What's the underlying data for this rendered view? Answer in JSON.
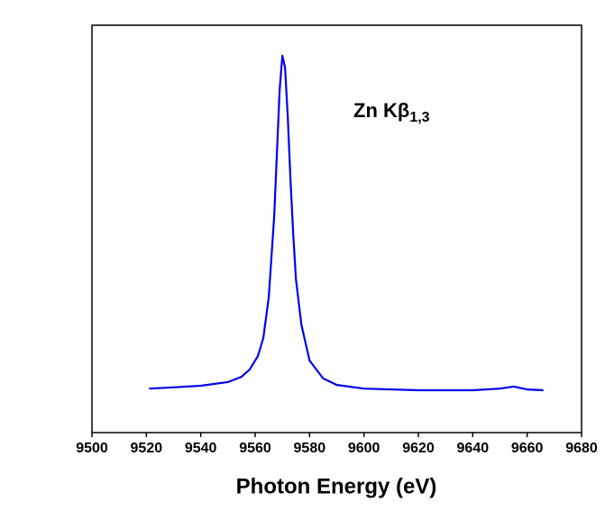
{
  "chart_data": {
    "type": "line",
    "x_label": "Photon Energy (eV)",
    "annotation": {
      "text": "Zn Kβ",
      "subscript": "1,3"
    },
    "xlim": [
      9500,
      9680
    ],
    "xticks": [
      9500,
      9520,
      9540,
      9560,
      9580,
      9600,
      9620,
      9640,
      9660,
      9680
    ],
    "ylim": [
      0,
      1
    ],
    "series": [
      {
        "color": "#0000ee",
        "x": [
          9521,
          9530,
          9540,
          9550,
          9555,
          9558,
          9561,
          9563,
          9565,
          9567,
          9568,
          9569,
          9570,
          9571,
          9572,
          9573,
          9574,
          9575,
          9577,
          9580,
          9585,
          9590,
          9600,
          9620,
          9640,
          9650,
          9655,
          9660,
          9666
        ],
        "values": [
          0.108,
          0.111,
          0.115,
          0.124,
          0.137,
          0.155,
          0.188,
          0.232,
          0.332,
          0.531,
          0.686,
          0.841,
          0.925,
          0.896,
          0.774,
          0.619,
          0.487,
          0.376,
          0.265,
          0.177,
          0.133,
          0.117,
          0.108,
          0.104,
          0.104,
          0.108,
          0.113,
          0.106,
          0.104
        ]
      }
    ]
  }
}
